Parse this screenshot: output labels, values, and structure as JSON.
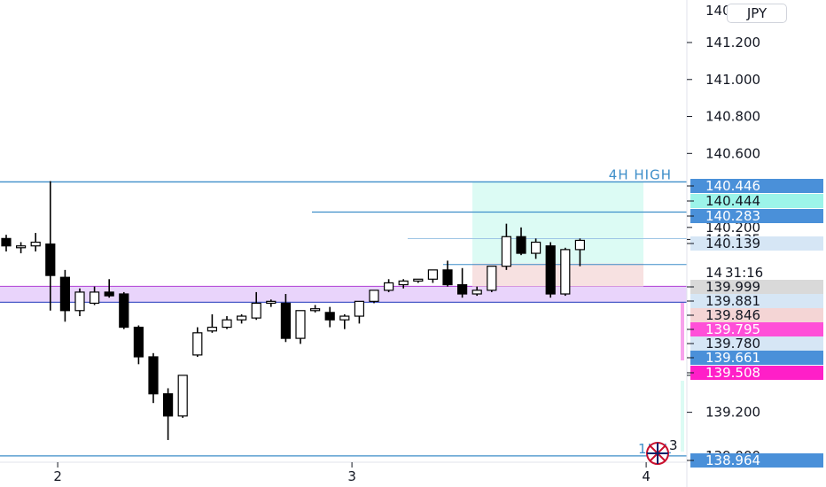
{
  "instrument": {
    "currency": "JPY"
  },
  "chart_data": {
    "type": "candlestick",
    "y_axis": {
      "ticks": [
        "141.200",
        "141.000",
        "140.800",
        "140.600",
        "140.200",
        "140.135",
        "139.400",
        "139.200"
      ],
      "partial_ticks": [
        "14_0",
        "14",
        "139.000"
      ],
      "range": [
        138.93,
        141.43
      ]
    },
    "x_axis": {
      "ticks": [
        {
          "label": "2",
          "index": 3.5
        },
        {
          "label": "3",
          "index": 23.5
        },
        {
          "label": "4",
          "index": 43.5
        }
      ]
    },
    "countdown": "31:16",
    "candles": [
      {
        "o": 140.14,
        "h": 140.16,
        "l": 140.07,
        "c": 140.1
      },
      {
        "o": 140.09,
        "h": 140.12,
        "l": 140.06,
        "c": 140.1
      },
      {
        "o": 140.1,
        "h": 140.17,
        "l": 140.07,
        "c": 140.12
      },
      {
        "o": 140.11,
        "h": 140.45,
        "l": 139.75,
        "c": 139.94
      },
      {
        "o": 139.93,
        "h": 139.97,
        "l": 139.69,
        "c": 139.75
      },
      {
        "o": 139.75,
        "h": 139.87,
        "l": 139.72,
        "c": 139.85
      },
      {
        "o": 139.79,
        "h": 139.88,
        "l": 139.78,
        "c": 139.85
      },
      {
        "o": 139.85,
        "h": 139.92,
        "l": 139.82,
        "c": 139.83
      },
      {
        "o": 139.84,
        "h": 139.85,
        "l": 139.65,
        "c": 139.66
      },
      {
        "o": 139.66,
        "h": 139.67,
        "l": 139.46,
        "c": 139.5
      },
      {
        "o": 139.5,
        "h": 139.52,
        "l": 139.25,
        "c": 139.3
      },
      {
        "o": 139.3,
        "h": 139.33,
        "l": 139.05,
        "c": 139.18
      },
      {
        "o": 139.18,
        "h": 139.4,
        "l": 139.17,
        "c": 139.4
      },
      {
        "o": 139.51,
        "h": 139.66,
        "l": 139.5,
        "c": 139.63
      },
      {
        "o": 139.64,
        "h": 139.73,
        "l": 139.63,
        "c": 139.66
      },
      {
        "o": 139.66,
        "h": 139.72,
        "l": 139.65,
        "c": 139.7
      },
      {
        "o": 139.7,
        "h": 139.73,
        "l": 139.68,
        "c": 139.72
      },
      {
        "o": 139.71,
        "h": 139.85,
        "l": 139.7,
        "c": 139.79
      },
      {
        "o": 139.79,
        "h": 139.81,
        "l": 139.77,
        "c": 139.8
      },
      {
        "o": 139.79,
        "h": 139.84,
        "l": 139.58,
        "c": 139.6
      },
      {
        "o": 139.6,
        "h": 139.74,
        "l": 139.57,
        "c": 139.75
      },
      {
        "o": 139.75,
        "h": 139.78,
        "l": 139.74,
        "c": 139.76
      },
      {
        "o": 139.74,
        "h": 139.77,
        "l": 139.66,
        "c": 139.7
      },
      {
        "o": 139.7,
        "h": 139.73,
        "l": 139.65,
        "c": 139.72
      },
      {
        "o": 139.72,
        "h": 139.8,
        "l": 139.68,
        "c": 139.8
      },
      {
        "o": 139.8,
        "h": 139.86,
        "l": 139.79,
        "c": 139.86
      },
      {
        "o": 139.86,
        "h": 139.92,
        "l": 139.85,
        "c": 139.9
      },
      {
        "o": 139.89,
        "h": 139.92,
        "l": 139.87,
        "c": 139.91
      },
      {
        "o": 139.91,
        "h": 139.92,
        "l": 139.9,
        "c": 139.92
      },
      {
        "o": 139.92,
        "h": 139.95,
        "l": 139.9,
        "c": 139.97
      },
      {
        "o": 139.97,
        "h": 140.02,
        "l": 139.88,
        "c": 139.89
      },
      {
        "o": 139.89,
        "h": 139.98,
        "l": 139.82,
        "c": 139.84
      },
      {
        "o": 139.84,
        "h": 139.88,
        "l": 139.83,
        "c": 139.86
      },
      {
        "o": 139.86,
        "h": 139.99,
        "l": 139.85,
        "c": 139.99
      },
      {
        "o": 139.99,
        "h": 140.22,
        "l": 139.97,
        "c": 140.15
      },
      {
        "o": 140.15,
        "h": 140.2,
        "l": 140.05,
        "c": 140.06
      },
      {
        "o": 140.06,
        "h": 140.14,
        "l": 140.03,
        "c": 140.12
      },
      {
        "o": 140.1,
        "h": 140.12,
        "l": 139.82,
        "c": 139.84
      },
      {
        "o": 139.84,
        "h": 140.09,
        "l": 139.83,
        "c": 140.08
      },
      {
        "o": 140.08,
        "h": 140.14,
        "l": 139.99,
        "c": 140.13
      }
    ],
    "horizontal_lines": [
      {
        "price": 140.446,
        "label": "4H HIGH",
        "color": "#3d8ec9"
      },
      {
        "price": 140.283,
        "color": "#3d8ec9"
      },
      {
        "price": 139.795,
        "color": "#4a5cc7"
      },
      {
        "price": 138.964,
        "label": "1H L",
        "color": "#3d8ec9"
      }
    ],
    "zones": [
      {
        "name": "supply-demand-zone",
        "top": 139.881,
        "bottom": 139.795,
        "color": "#e9d4fb"
      },
      {
        "name": "target-zone",
        "top": 140.446,
        "bottom": 140.005,
        "color": "#dcfbf4"
      },
      {
        "name": "stop-zone",
        "top": 140.005,
        "bottom": 139.881,
        "color": "#f7e1e1"
      }
    ],
    "price_tags": [
      {
        "label": "140.446",
        "price": 140.446,
        "bg": "#4a90d9",
        "fg": "#ffffff"
      },
      {
        "label": "140.444",
        "price": 140.444,
        "bg": "#9cf4e9",
        "fg": "#131722"
      },
      {
        "label": "140.283",
        "price": 140.283,
        "bg": "#4a90d9",
        "fg": "#ffffff"
      },
      {
        "label": "140.139",
        "price": 140.139,
        "bg": "#d6e6f5",
        "fg": "#131722"
      },
      {
        "label": "139.999",
        "price": 139.999,
        "bg": "#d9d9d9",
        "fg": "#131722"
      },
      {
        "label": "139.881",
        "price": 139.881,
        "bg": "#d6e6f5",
        "fg": "#131722"
      },
      {
        "label": "139.846",
        "price": 139.846,
        "bg": "#f4d5d5",
        "fg": "#131722"
      },
      {
        "label": "139.795",
        "price": 139.795,
        "bg": "#ff4fd8",
        "fg": "#ffffff"
      },
      {
        "label": "139.780",
        "price": 139.78,
        "bg": "#d6e6f5",
        "fg": "#131722"
      },
      {
        "label": "139.661",
        "price": 139.661,
        "bg": "#4a90d9",
        "fg": "#ffffff"
      },
      {
        "label": "139.508",
        "price": 139.508,
        "bg": "#ff1fc8",
        "fg": "#ffffff"
      },
      {
        "label": "138.964",
        "price": 138.964,
        "bg": "#4a90d9",
        "fg": "#ffffff"
      }
    ],
    "badge_count": "3"
  }
}
